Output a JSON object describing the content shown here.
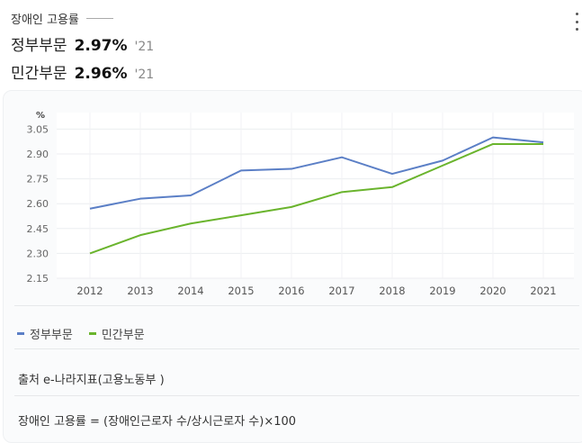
{
  "header": {
    "title": "장애인 고용률",
    "stats": [
      {
        "label": "정부부문",
        "value": "2.97%",
        "year": "'21"
      },
      {
        "label": "민간부문",
        "value": "2.96%",
        "year": "'21"
      }
    ]
  },
  "colors": {
    "government": "#5b7fc6",
    "private": "#6ab42d"
  },
  "icons": {
    "menu": "kebab-icon"
  },
  "chart_data": {
    "type": "line",
    "title": "",
    "xlabel": "",
    "ylabel": "%",
    "categories": [
      "2012",
      "2013",
      "2014",
      "2015",
      "2016",
      "2017",
      "2018",
      "2019",
      "2020",
      "2021"
    ],
    "yticks": [
      "3.05",
      "2.90",
      "2.75",
      "2.60",
      "2.45",
      "2.30",
      "2.15"
    ],
    "ylim": [
      2.15,
      3.15
    ],
    "grid": true,
    "legend_position": "bottom-left",
    "series": [
      {
        "name": "정부부문",
        "color": "#5b7fc6",
        "values": [
          2.57,
          2.63,
          2.65,
          2.8,
          2.81,
          2.88,
          2.78,
          2.86,
          3.0,
          2.97
        ]
      },
      {
        "name": "민간부문",
        "color": "#6ab42d",
        "values": [
          2.3,
          2.41,
          2.48,
          2.53,
          2.58,
          2.67,
          2.7,
          2.83,
          2.96,
          2.96
        ]
      }
    ]
  },
  "footnotes": {
    "source": "출처 e-나라지표(고용노동부 )",
    "formula": "장애인 고용률 = (장애인근로자 수/상시근로자 수)×100"
  }
}
